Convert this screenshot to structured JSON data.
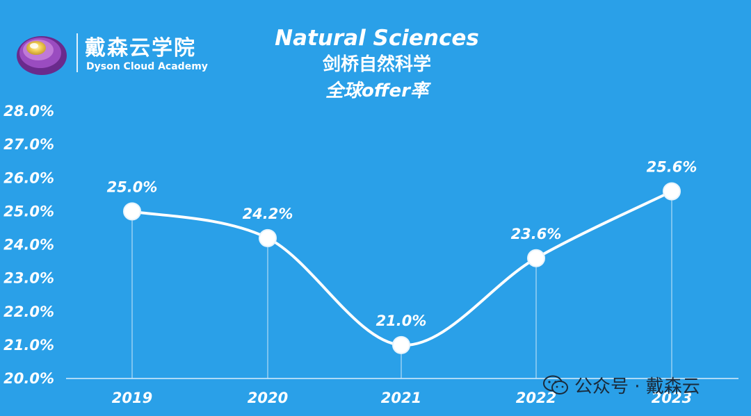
{
  "logo": {
    "name_cn": "戴森云学院",
    "name_en": "Dyson Cloud Academy"
  },
  "title": {
    "line1": "Natural Sciences",
    "line2": "剑桥自然科学",
    "line3": "全球offer率"
  },
  "footer": {
    "watermark_text": "公众号 · 戴森云"
  },
  "colors": {
    "background": "#2aa0e8",
    "line": "#ffffff",
    "gridline": "#cfe8f9"
  },
  "chart_data": {
    "type": "line",
    "title": "Natural Sciences 剑桥自然科学 全球offer率",
    "xlabel": "",
    "ylabel": "",
    "categories": [
      "2019",
      "2020",
      "2021",
      "2022",
      "2023"
    ],
    "values": [
      25.0,
      24.2,
      21.0,
      23.6,
      25.6
    ],
    "data_labels": [
      "25.0%",
      "24.2%",
      "21.0%",
      "23.6%",
      "25.6%"
    ],
    "ylim": [
      20.0,
      28.0
    ],
    "yticks": [
      "20.0%",
      "21.0%",
      "22.0%",
      "23.0%",
      "24.0%",
      "25.0%",
      "26.0%",
      "27.0%",
      "28.0%"
    ],
    "ytick_values": [
      20,
      21,
      22,
      23,
      24,
      25,
      26,
      27,
      28
    ],
    "smooth": true,
    "markers": "white circles",
    "grid": "vertical drop lines at each point",
    "legend": "none"
  }
}
